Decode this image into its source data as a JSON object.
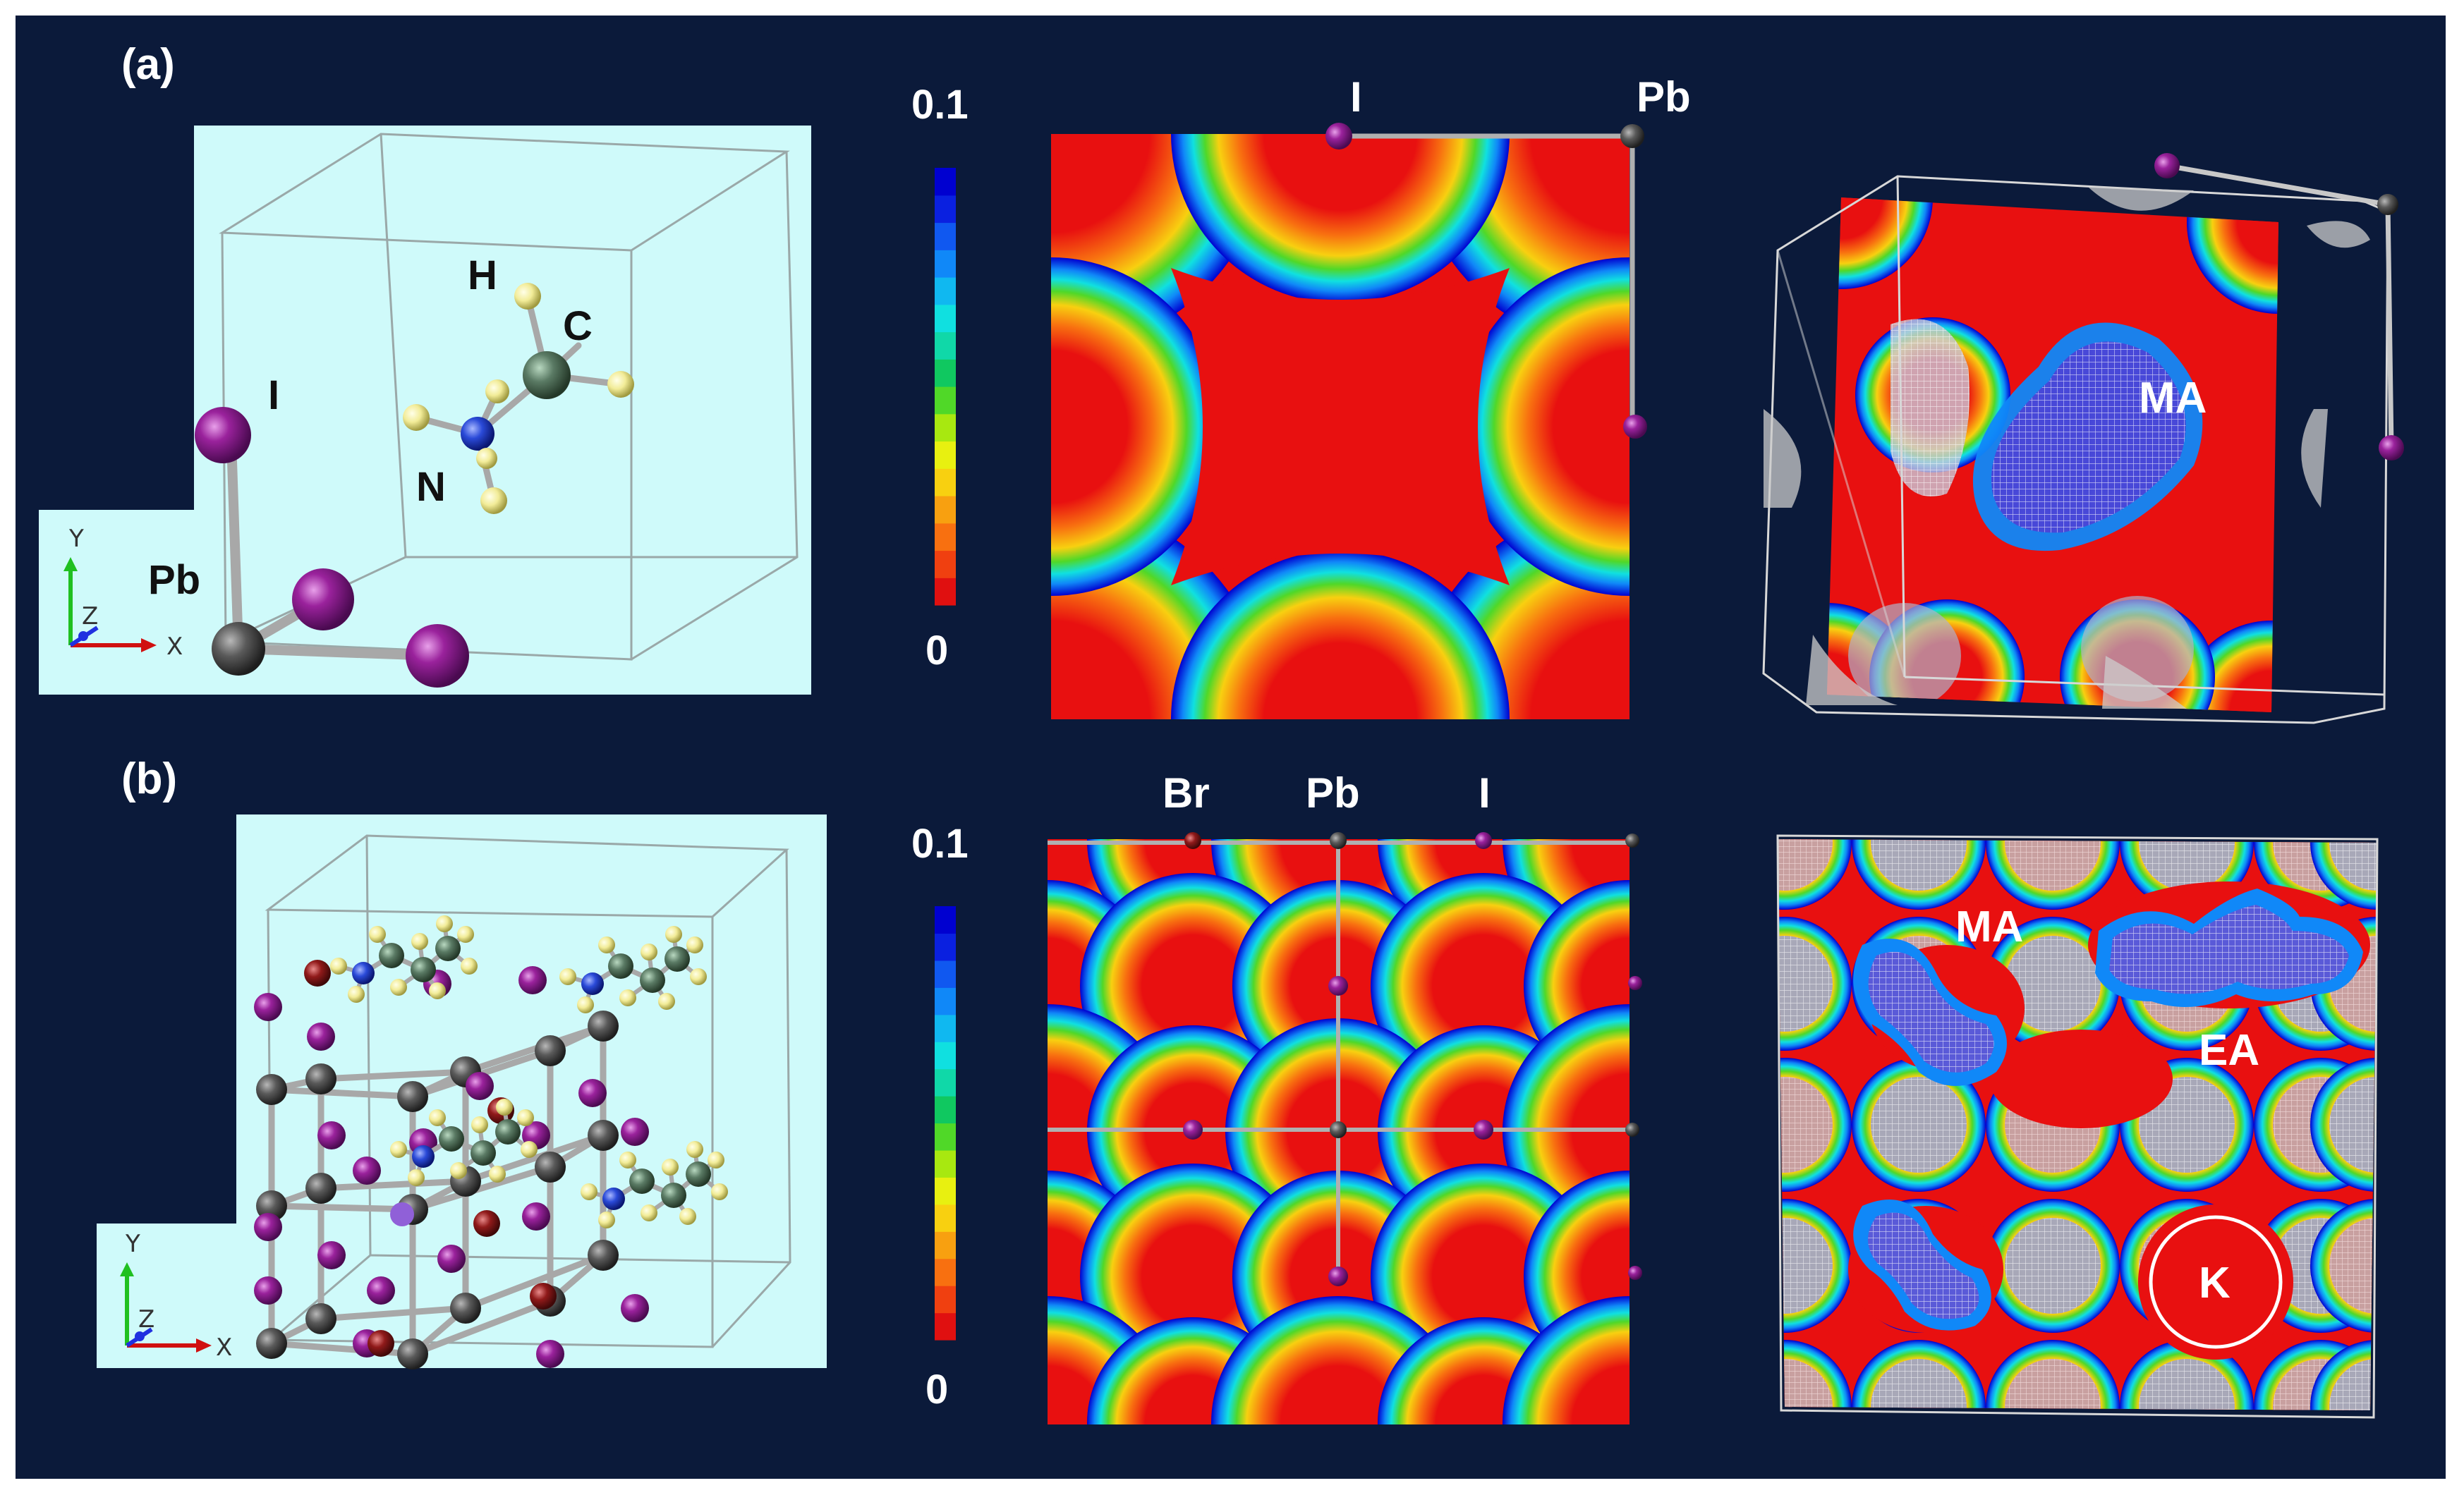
{
  "panels": {
    "a": {
      "label": "(a)",
      "atoms": {
        "H": "H",
        "C": "C",
        "I": "I",
        "N": "N",
        "Pb": "Pb"
      },
      "axes": {
        "y": "Y",
        "z": "Z",
        "x": "X"
      },
      "map_atoms": {
        "I": "I",
        "Pb": "Pb"
      },
      "colorbar": {
        "max": "0.1",
        "min": "0"
      },
      "molecule": "MA"
    },
    "b": {
      "label": "(b)",
      "axes": {
        "y": "Y",
        "z": "Z",
        "x": "X"
      },
      "map_atoms": {
        "Br": "Br",
        "Pb": "Pb",
        "I": "I"
      },
      "colorbar": {
        "max": "0.1",
        "min": "0"
      },
      "molecules": {
        "MA": "MA",
        "EA": "EA",
        "K": "K"
      }
    }
  },
  "colors": {
    "background": "#0b1a3a",
    "scene": "#cffafa",
    "iodine": "#8a1a8c",
    "lead": "#555555",
    "bromine": "#8a1a1a",
    "carbon": "#5a7a64",
    "nitrogen": "#2a4ad8",
    "hydrogen": "#f4f0a0",
    "colorbar": [
      "#e01010",
      "#f04010",
      "#f87010",
      "#f8a010",
      "#f8d010",
      "#e8f010",
      "#a8e810",
      "#50d828",
      "#10c860",
      "#10d8a8",
      "#10e0e0",
      "#10b8f0",
      "#1088f8",
      "#1058f0",
      "#0a20e0",
      "#0000d0"
    ]
  }
}
